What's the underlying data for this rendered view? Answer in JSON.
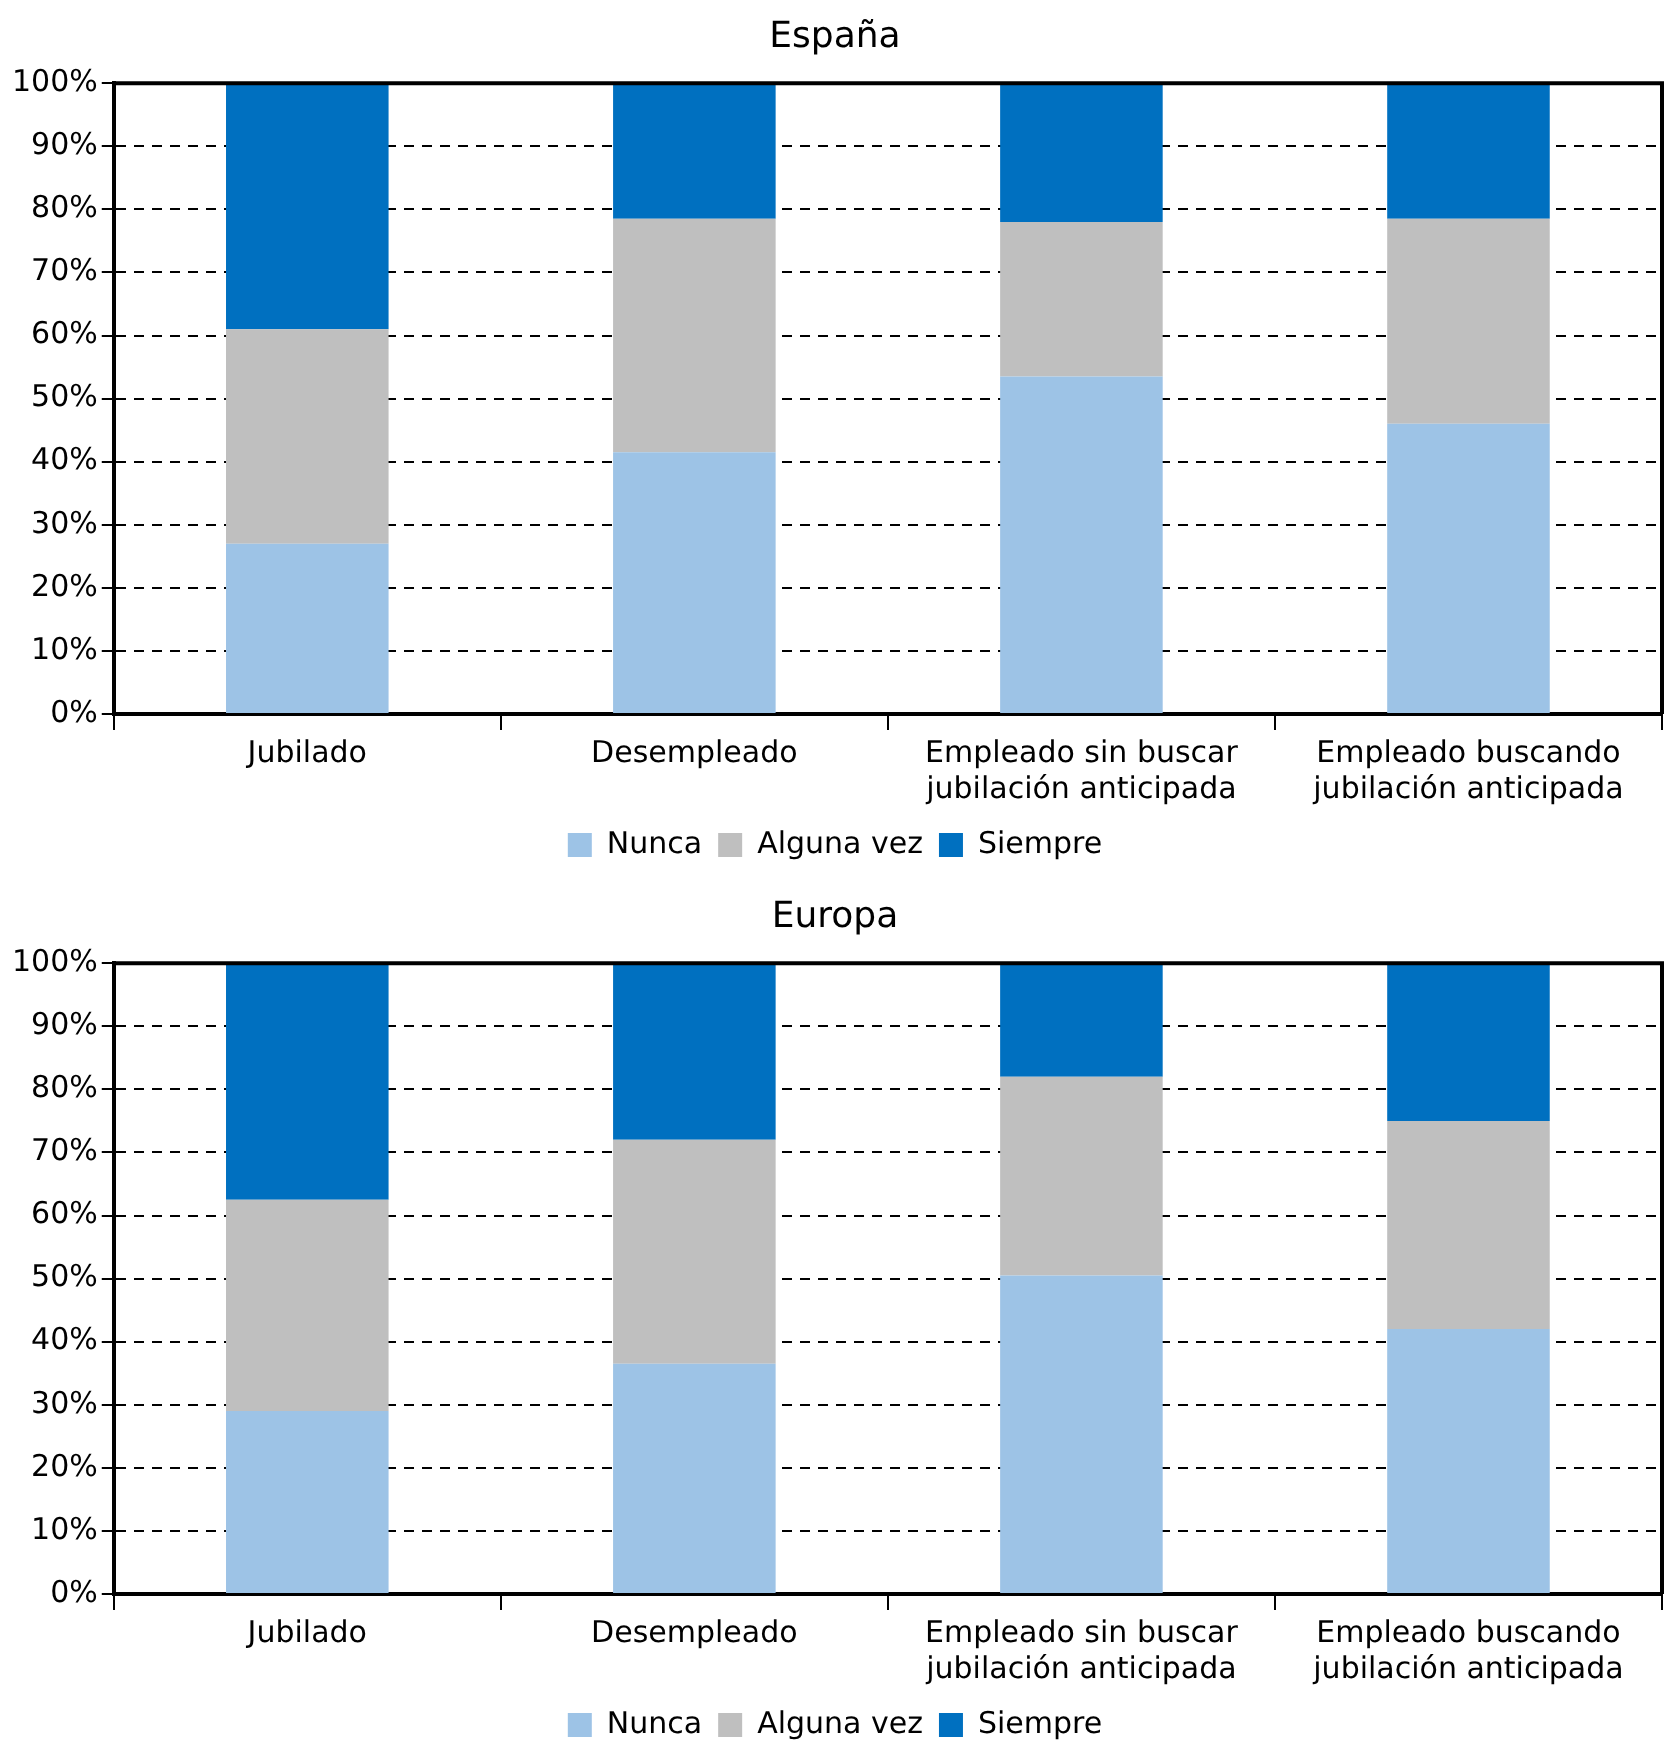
{
  "chart_data": [
    {
      "type": "bar",
      "title": "España",
      "stacked": true,
      "grid": "y",
      "legend": "bottom",
      "categories": [
        "Jubilado",
        "Desempleado",
        "Empleado sin buscar jubilación anticipada",
        "Empleado buscando jubilación anticipada"
      ],
      "series": [
        {
          "name": "Nunca",
          "color": "#9dc3e6",
          "values": [
            27,
            41.5,
            53.5,
            46
          ]
        },
        {
          "name": "Alguna vez",
          "color": "#bfbfbf",
          "values": [
            34,
            37,
            24.5,
            32.5
          ]
        },
        {
          "name": "Siempre",
          "color": "#0070c0",
          "values": [
            39,
            21.5,
            22,
            21.5
          ]
        }
      ],
      "ylim": [
        0,
        100
      ],
      "yticks": [
        {
          "value": 0,
          "label": "0%"
        },
        {
          "value": 10,
          "label": "10%"
        },
        {
          "value": 20,
          "label": "20%"
        },
        {
          "value": 30,
          "label": "30%"
        },
        {
          "value": 40,
          "label": "40%"
        },
        {
          "value": 50,
          "label": "50%"
        },
        {
          "value": 60,
          "label": "60%"
        },
        {
          "value": 70,
          "label": "70%"
        },
        {
          "value": 80,
          "label": "80%"
        },
        {
          "value": 90,
          "label": "90%"
        },
        {
          "value": 100,
          "label": "100%"
        }
      ]
    },
    {
      "type": "bar",
      "title": "Europa",
      "stacked": true,
      "grid": "y",
      "legend": "bottom",
      "categories": [
        "Jubilado",
        "Desempleado",
        "Empleado sin buscar jubilación anticipada",
        "Empleado buscando jubilación anticipada"
      ],
      "series": [
        {
          "name": "Nunca",
          "color": "#9dc3e6",
          "values": [
            29,
            36.5,
            50.5,
            42
          ]
        },
        {
          "name": "Alguna vez",
          "color": "#bfbfbf",
          "values": [
            33.5,
            35.5,
            31.5,
            33
          ]
        },
        {
          "name": "Siempre",
          "color": "#0070c0",
          "values": [
            37.5,
            28,
            18,
            25
          ]
        }
      ],
      "ylim": [
        0,
        100
      ],
      "yticks": [
        {
          "value": 0,
          "label": "0%"
        },
        {
          "value": 10,
          "label": "10%"
        },
        {
          "value": 20,
          "label": "20%"
        },
        {
          "value": 30,
          "label": "30%"
        },
        {
          "value": 40,
          "label": "40%"
        },
        {
          "value": 50,
          "label": "50%"
        },
        {
          "value": 60,
          "label": "60%"
        },
        {
          "value": 70,
          "label": "70%"
        },
        {
          "value": 80,
          "label": "80%"
        },
        {
          "value": 90,
          "label": "90%"
        },
        {
          "value": 100,
          "label": "100%"
        }
      ]
    }
  ]
}
